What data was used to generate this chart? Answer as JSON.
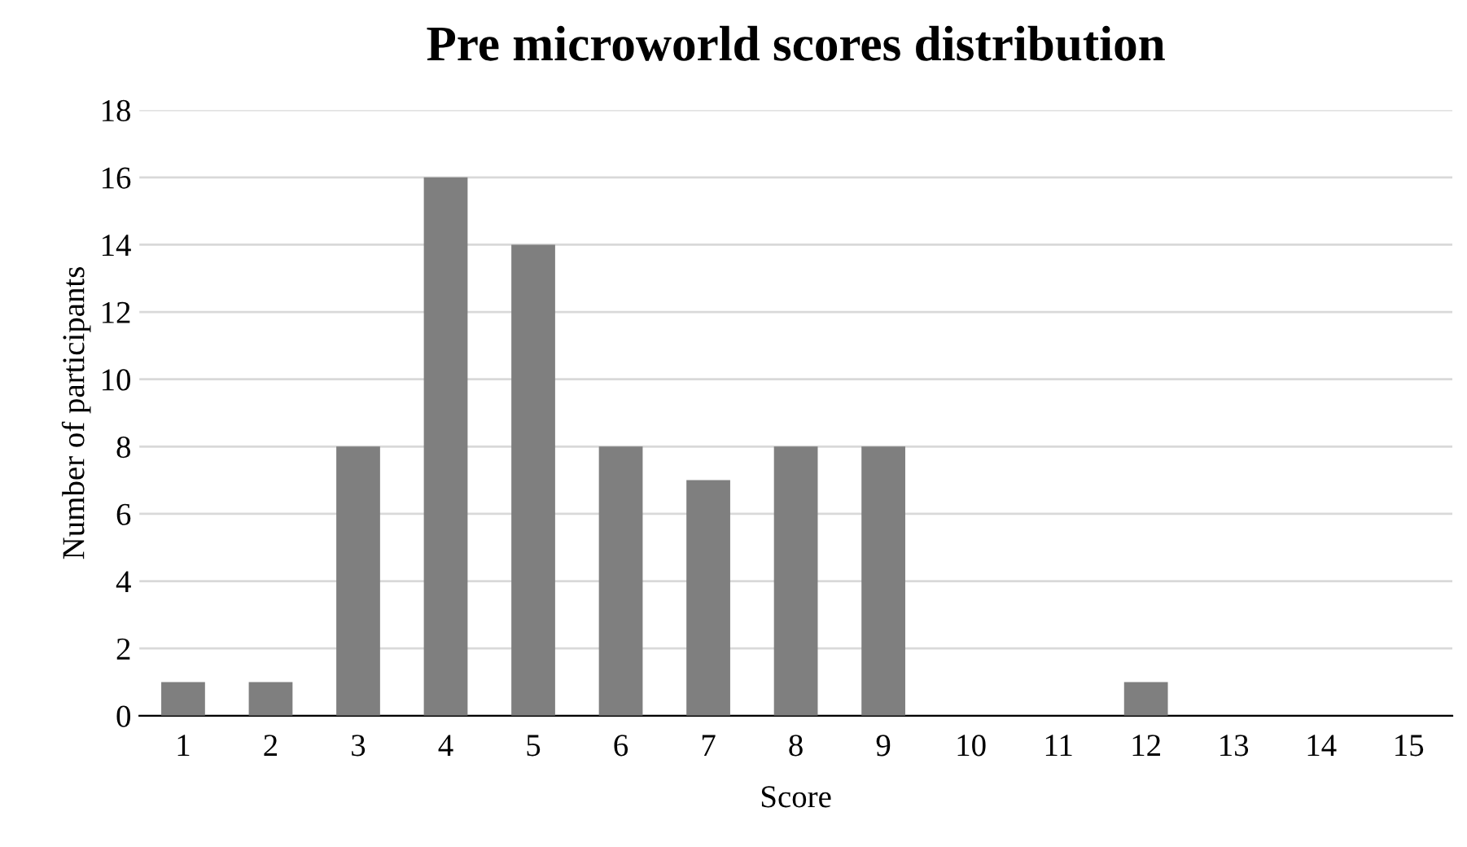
{
  "chart_data": {
    "type": "bar",
    "title": "Pre microworld scores distribution",
    "xlabel": "Score",
    "ylabel": "Number of participants",
    "categories": [
      "1",
      "2",
      "3",
      "4",
      "5",
      "6",
      "7",
      "8",
      "9",
      "10",
      "11",
      "12",
      "13",
      "14",
      "15"
    ],
    "values": [
      1,
      1,
      8,
      16,
      14,
      8,
      7,
      8,
      8,
      0,
      0,
      1,
      0,
      0,
      0
    ],
    "color": "#7f7f7f",
    "ylim": [
      0,
      18
    ],
    "yticks": [
      0,
      2,
      4,
      6,
      8,
      10,
      12,
      14,
      16,
      18
    ],
    "grid": "y"
  }
}
